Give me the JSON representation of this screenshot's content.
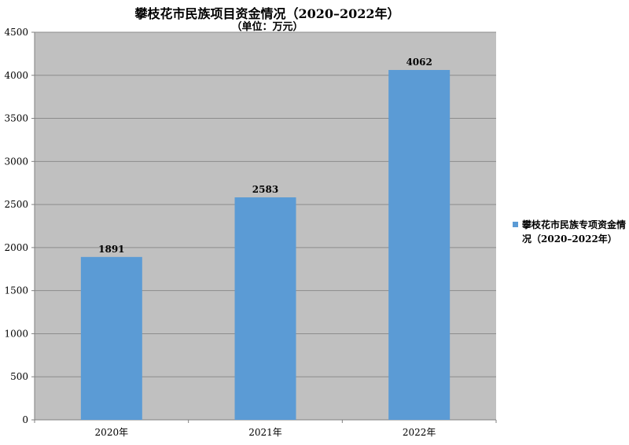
{
  "colors": {
    "plot_background": "#c0c0c0",
    "bar": "#5b9bd5",
    "gridline": "#8c8c8c",
    "axis": "#808080",
    "text": "#000000"
  },
  "chart_data": {
    "type": "bar",
    "title": "攀枝花市民族项目资金情况（2020–2022年）",
    "subtitle": "（单位：万元）",
    "categories": [
      "2020年",
      "2021年",
      "2022年"
    ],
    "series": [
      {
        "name": "攀枝花市民族专项资金情况（2020–2022年）",
        "values": [
          1891,
          2583,
          4062
        ],
        "color": "#5b9bd5"
      }
    ],
    "data_labels": [
      "1891",
      "2583",
      "4062"
    ],
    "ylim": [
      0,
      4500
    ],
    "yticks": [
      0,
      500,
      1000,
      1500,
      2000,
      2500,
      3000,
      3500,
      4000,
      4500
    ],
    "ytick_labels": [
      "0",
      "500",
      "1000",
      "1500",
      "2000",
      "2500",
      "3000",
      "3500",
      "4000",
      "4500"
    ],
    "grid": true,
    "legend_position": "right"
  }
}
